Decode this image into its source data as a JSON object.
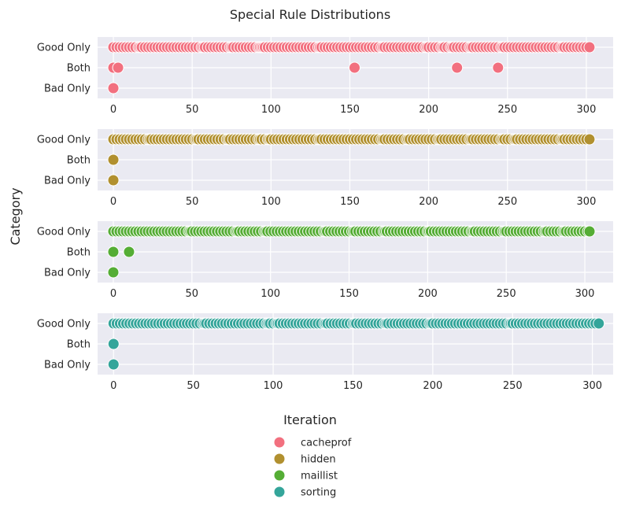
{
  "chart_data": {
    "type": "scatter",
    "title": "Special Rule Distributions",
    "xlabel": "Iteration",
    "ylabel": "Category",
    "categories": [
      "Good Only",
      "Both",
      "Bad Only"
    ],
    "xticks": [
      0,
      50,
      100,
      150,
      200,
      250,
      300
    ],
    "grid": true,
    "legend_position": "bottom-center",
    "panels": [
      {
        "name": "cacheprof",
        "color": "#f2707f",
        "xlim": [
          -10,
          317
        ],
        "points": {
          "Good Only": [
            0,
            2,
            4,
            6,
            8,
            10,
            12,
            14,
            16,
            17,
            18,
            20,
            22,
            24,
            26,
            28,
            30,
            32,
            34,
            36,
            38,
            40,
            42,
            44,
            46,
            48,
            50,
            52,
            54,
            56,
            57,
            58,
            60,
            62,
            64,
            66,
            68,
            70,
            72,
            74,
            75,
            76,
            78,
            80,
            82,
            84,
            86,
            88,
            90,
            92,
            93,
            94,
            95,
            96,
            98,
            100,
            102,
            104,
            106,
            108,
            110,
            112,
            114,
            116,
            118,
            120,
            122,
            124,
            126,
            128,
            130,
            131,
            132,
            134,
            136,
            138,
            140,
            142,
            144,
            146,
            148,
            150,
            152,
            154,
            156,
            158,
            160,
            162,
            164,
            166,
            168,
            170,
            171,
            172,
            174,
            176,
            178,
            180,
            182,
            184,
            186,
            188,
            190,
            192,
            194,
            196,
            198,
            199,
            200,
            202,
            204,
            206,
            208,
            209,
            210,
            212,
            214,
            215,
            216,
            218,
            220,
            222,
            224,
            226,
            227,
            228,
            230,
            232,
            234,
            236,
            238,
            240,
            242,
            244,
            246,
            247,
            248,
            250,
            252,
            254,
            256,
            258,
            260,
            262,
            264,
            266,
            268,
            270,
            272,
            274,
            276,
            278,
            280,
            282,
            284,
            285,
            286,
            288,
            290,
            292,
            294,
            296,
            298,
            300,
            302
          ],
          "Both": [
            0,
            3,
            153,
            218,
            244
          ],
          "Bad Only": [
            0
          ]
        }
      },
      {
        "name": "hidden",
        "color": "#b1902f",
        "xlim": [
          -10,
          317
        ],
        "points": {
          "Good Only": [
            0,
            2,
            4,
            6,
            8,
            10,
            12,
            14,
            16,
            18,
            20,
            22,
            23,
            24,
            26,
            28,
            30,
            32,
            34,
            36,
            38,
            40,
            42,
            44,
            46,
            48,
            50,
            52,
            53,
            54,
            56,
            58,
            60,
            62,
            64,
            66,
            68,
            70,
            72,
            73,
            74,
            76,
            78,
            80,
            82,
            84,
            86,
            88,
            90,
            92,
            93,
            94,
            96,
            98,
            99,
            100,
            102,
            104,
            106,
            108,
            110,
            112,
            114,
            116,
            118,
            120,
            122,
            124,
            126,
            128,
            130,
            131,
            132,
            134,
            136,
            138,
            140,
            142,
            144,
            146,
            148,
            150,
            152,
            154,
            156,
            158,
            160,
            162,
            164,
            166,
            168,
            170,
            171,
            172,
            174,
            176,
            178,
            180,
            182,
            184,
            186,
            187,
            188,
            190,
            192,
            194,
            196,
            198,
            200,
            202,
            204,
            206,
            207,
            208,
            210,
            212,
            214,
            216,
            218,
            220,
            222,
            224,
            226,
            227,
            228,
            230,
            232,
            234,
            236,
            238,
            240,
            242,
            244,
            246,
            247,
            248,
            250,
            252,
            254,
            255,
            256,
            258,
            260,
            262,
            264,
            266,
            268,
            270,
            272,
            274,
            276,
            278,
            280,
            282,
            284,
            285,
            286,
            288,
            290,
            292,
            294,
            296,
            298,
            300,
            302
          ],
          "Both": [
            0
          ],
          "Bad Only": [
            0
          ]
        }
      },
      {
        "name": "maillist",
        "color": "#55ad35",
        "xlim": [
          -10,
          318
        ],
        "points": {
          "Good Only": [
            0,
            2,
            4,
            6,
            8,
            10,
            12,
            14,
            16,
            18,
            20,
            22,
            24,
            26,
            28,
            30,
            32,
            34,
            36,
            38,
            40,
            42,
            44,
            46,
            48,
            49,
            50,
            52,
            54,
            56,
            58,
            60,
            62,
            64,
            66,
            68,
            70,
            72,
            74,
            76,
            78,
            79,
            80,
            82,
            84,
            86,
            88,
            90,
            92,
            94,
            96,
            97,
            98,
            100,
            102,
            104,
            106,
            108,
            110,
            112,
            114,
            116,
            118,
            120,
            122,
            124,
            126,
            128,
            130,
            132,
            134,
            135,
            136,
            138,
            140,
            142,
            144,
            146,
            148,
            150,
            152,
            153,
            154,
            156,
            158,
            160,
            162,
            164,
            166,
            168,
            170,
            172,
            173,
            174,
            176,
            178,
            180,
            182,
            184,
            186,
            188,
            190,
            192,
            194,
            196,
            198,
            200,
            201,
            202,
            204,
            206,
            208,
            210,
            212,
            214,
            216,
            218,
            220,
            222,
            224,
            226,
            228,
            229,
            230,
            232,
            234,
            236,
            238,
            240,
            242,
            244,
            246,
            248,
            249,
            250,
            252,
            254,
            256,
            258,
            260,
            262,
            264,
            266,
            268,
            270,
            272,
            274,
            275,
            276,
            278,
            280,
            282,
            284,
            286,
            287,
            288,
            290,
            292,
            294,
            296,
            298,
            300,
            302,
            303
          ],
          "Both": [
            0,
            10
          ],
          "Bad Only": [
            0
          ]
        }
      },
      {
        "name": "sorting",
        "color": "#34a59a",
        "xlim": [
          -10,
          313
        ],
        "points": {
          "Good Only": [
            0,
            2,
            4,
            6,
            8,
            10,
            12,
            14,
            16,
            18,
            20,
            22,
            24,
            26,
            28,
            30,
            32,
            34,
            36,
            38,
            40,
            42,
            44,
            46,
            48,
            50,
            52,
            54,
            56,
            57,
            58,
            60,
            62,
            64,
            66,
            68,
            70,
            72,
            74,
            76,
            78,
            80,
            82,
            84,
            86,
            88,
            90,
            92,
            94,
            96,
            97,
            98,
            100,
            102,
            103,
            104,
            106,
            108,
            110,
            112,
            114,
            116,
            118,
            120,
            122,
            124,
            126,
            128,
            130,
            132,
            133,
            134,
            136,
            138,
            140,
            142,
            144,
            146,
            148,
            150,
            151,
            152,
            154,
            156,
            158,
            160,
            162,
            164,
            166,
            168,
            170,
            171,
            172,
            174,
            176,
            178,
            180,
            182,
            184,
            186,
            188,
            190,
            192,
            194,
            196,
            198,
            199,
            200,
            202,
            204,
            206,
            208,
            210,
            212,
            214,
            216,
            218,
            220,
            222,
            224,
            226,
            228,
            230,
            232,
            234,
            236,
            238,
            240,
            242,
            244,
            246,
            248,
            249,
            250,
            252,
            254,
            256,
            258,
            260,
            262,
            264,
            266,
            268,
            270,
            272,
            274,
            276,
            278,
            280,
            282,
            284,
            286,
            288,
            290,
            292,
            294,
            296,
            298,
            300,
            302,
            304
          ],
          "Both": [
            0
          ],
          "Bad Only": [
            0
          ]
        }
      }
    ]
  }
}
